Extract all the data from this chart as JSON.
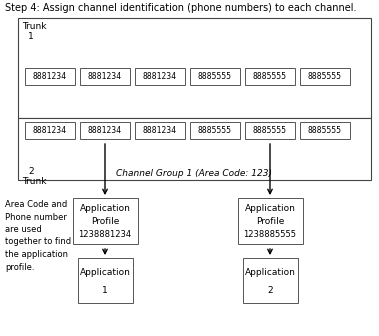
{
  "title": "Step 4: Assign channel identification (phone numbers) to each channel.",
  "title_fontsize": 7.0,
  "bg_color": "#ffffff",
  "cyan_color": "#b3ecf7",
  "trunk1_label": "Trunk\n  1",
  "trunk2_label": "Trunk\n  2",
  "group_label": "Channel Group 1 (Area Code: 123)",
  "channels_left": [
    "8881234",
    "8881234",
    "8881234"
  ],
  "channels_right": [
    "8885555",
    "8885555",
    "8885555"
  ],
  "app_profile1_line1": "Application",
  "app_profile1_line2": "Profile",
  "app_profile1_num": "1238881234",
  "app_profile2_line1": "Application",
  "app_profile2_line2": "Profile",
  "app_profile2_num": "1238885555",
  "app1_line1": "Application",
  "app1_num": "1",
  "app2_line1": "Application",
  "app2_num": "2",
  "side_text": "Area Code and\nPhone number\nare used\ntogether to find\nthe application\nprofile."
}
